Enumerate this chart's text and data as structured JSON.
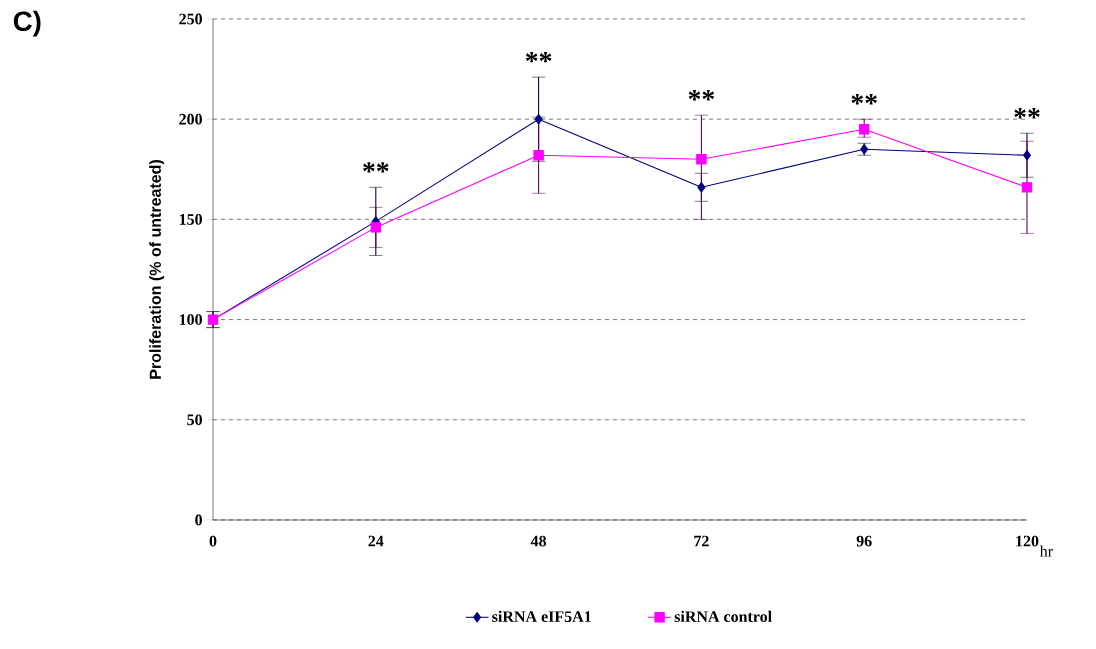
{
  "chart_data": {
    "type": "line",
    "ylabel": "Proliferation (% of untreated)",
    "xlabel": "hr",
    "x": [
      0,
      24,
      48,
      72,
      96,
      120
    ],
    "xlim": [
      0,
      120
    ],
    "xticks": [
      0,
      24,
      48,
      72,
      96,
      120
    ],
    "ylim": [
      0,
      250
    ],
    "yticks": [
      0,
      50,
      100,
      150,
      200,
      250
    ],
    "grid": "y",
    "legend": "bottom",
    "series": [
      {
        "name": "siRNA eIF5A1",
        "color": "#000080",
        "marker": "diamond",
        "values": [
          100,
          149,
          200,
          166,
          185,
          182
        ],
        "errors": [
          4,
          17,
          21,
          7,
          3,
          11
        ]
      },
      {
        "name": "siRNA control",
        "color": "#ff00ff",
        "marker": "square",
        "values": [
          100,
          146,
          182,
          180,
          195,
          166
        ],
        "errors": [
          4,
          10,
          [
            163,
            201
          ],
          [
            150,
            202
          ],
          [
            191,
            200
          ],
          23
        ]
      }
    ],
    "annotations": [
      "C)",
      "**",
      "**",
      "**",
      "**",
      "**"
    ]
  }
}
